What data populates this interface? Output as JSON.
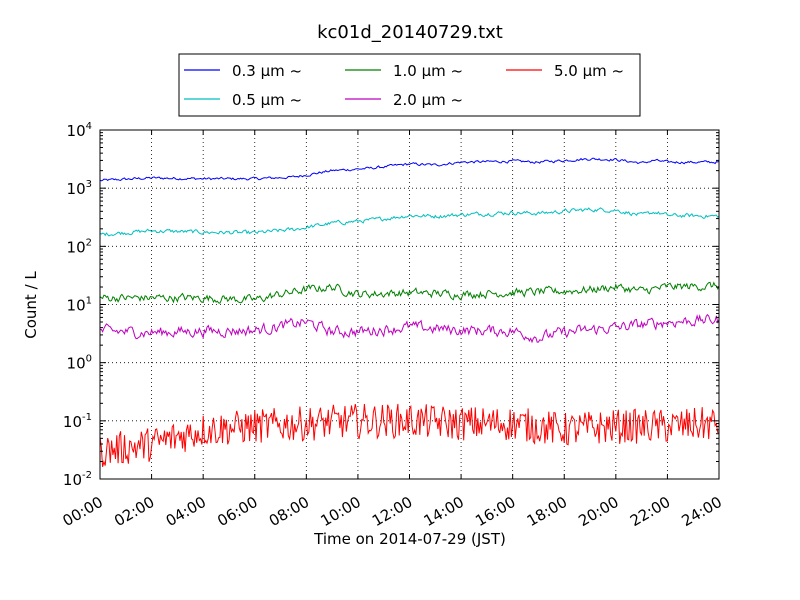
{
  "chart_data": {
    "type": "line",
    "title": "kc01d_20140729.txt",
    "xlabel": "Time on 2014-07-29 (JST)",
    "ylabel": "Count / L",
    "x_range": [
      "2014-07-29 00:00",
      "2014-07-30 00:00"
    ],
    "x_ticks": [
      "00:00",
      "02:00",
      "04:00",
      "06:00",
      "08:00",
      "10:00",
      "12:00",
      "14:00",
      "16:00",
      "18:00",
      "20:00",
      "22:00",
      "24:00"
    ],
    "yscale": "log",
    "ylim": [
      0.01,
      10000
    ],
    "y_ticks": [
      {
        "base": "10",
        "exp": "-2"
      },
      {
        "base": "10",
        "exp": "-1"
      },
      {
        "base": "10",
        "exp": "0"
      },
      {
        "base": "10",
        "exp": "1"
      },
      {
        "base": "10",
        "exp": "2"
      },
      {
        "base": "10",
        "exp": "3"
      },
      {
        "base": "10",
        "exp": "4"
      }
    ],
    "grid": true,
    "legend_position": "above plot, centered",
    "series": [
      {
        "name": "0.3 μm ~",
        "color": "#0000ff",
        "noise": 0.02,
        "x": [
          "00:00",
          "02:00",
          "04:00",
          "06:00",
          "07:30",
          "09:00",
          "10:30",
          "12:00",
          "13:00",
          "14:00",
          "16:00",
          "17:00",
          "18:00",
          "19:00",
          "20:00",
          "21:00",
          "21:30",
          "22:00",
          "24:00"
        ],
        "y": [
          1350,
          1500,
          1450,
          1450,
          1550,
          2000,
          2200,
          2600,
          2500,
          2800,
          2900,
          2800,
          3000,
          3200,
          3100,
          2700,
          3000,
          2800,
          2800
        ]
      },
      {
        "name": "0.5 μm ~",
        "color": "#00bfbf",
        "noise": 0.03,
        "x": [
          "00:00",
          "02:00",
          "04:00",
          "06:00",
          "07:30",
          "09:00",
          "10:30",
          "12:00",
          "13:00",
          "14:00",
          "16:00",
          "17:00",
          "18:00",
          "19:00",
          "20:00",
          "21:00",
          "21:30",
          "22:00",
          "24:00"
        ],
        "y": [
          160,
          185,
          175,
          170,
          195,
          250,
          280,
          340,
          330,
          350,
          380,
          370,
          400,
          430,
          420,
          340,
          390,
          340,
          330
        ]
      },
      {
        "name": "1.0 μm ~",
        "color": "#008000",
        "noise": 0.06,
        "x": [
          "00:00",
          "02:00",
          "04:00",
          "06:00",
          "07:00",
          "08:00",
          "09:00",
          "10:00",
          "12:00",
          "14:00",
          "16:00",
          "18:00",
          "19:00",
          "20:00",
          "21:00",
          "22:00",
          "24:00"
        ],
        "y": [
          13,
          13,
          13,
          12,
          15,
          18,
          20,
          15,
          16,
          15,
          16,
          17,
          18,
          20,
          17,
          20,
          21
        ]
      },
      {
        "name": "2.0 μm ~",
        "color": "#bf00bf",
        "noise": 0.08,
        "x": [
          "00:00",
          "02:00",
          "04:00",
          "06:00",
          "07:00",
          "08:00",
          "09:00",
          "10:00",
          "12:00",
          "14:00",
          "16:00",
          "17:00",
          "18:00",
          "20:00",
          "21:00",
          "22:00",
          "24:00"
        ],
        "y": [
          3.5,
          3.3,
          3.5,
          3.6,
          4.2,
          5.0,
          3.4,
          3.4,
          4.1,
          3.6,
          3.5,
          2.7,
          3.3,
          4.0,
          4.5,
          5.0,
          5.5
        ]
      },
      {
        "name": "5.0 μm ~",
        "color": "#ff0000",
        "noise": 0.3,
        "x": [
          "00:00",
          "02:00",
          "04:00",
          "06:00",
          "08:00",
          "10:00",
          "12:00",
          "14:00",
          "16:00",
          "18:00",
          "20:00",
          "22:00",
          "24:00"
        ],
        "y": [
          0.03,
          0.04,
          0.07,
          0.08,
          0.09,
          0.1,
          0.1,
          0.09,
          0.09,
          0.07,
          0.08,
          0.08,
          0.09
        ]
      }
    ]
  }
}
